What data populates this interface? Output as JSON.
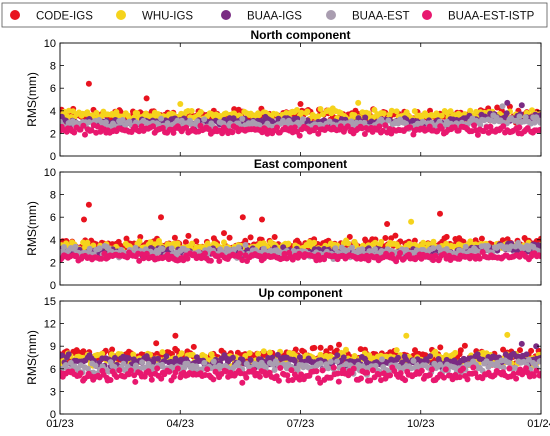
{
  "chart_data": {
    "type": "scatter",
    "legend": {
      "placement": "top",
      "entries": [
        {
          "name": "CODE-IGS",
          "color": "#e8131f"
        },
        {
          "name": "WHU-IGS",
          "color": "#f5d31c"
        },
        {
          "name": "BUAA-IGS",
          "color": "#7a2b83"
        },
        {
          "name": "BUAA-EST",
          "color": "#a99db0"
        },
        {
          "name": "BUAA-EST-ISTP",
          "color": "#e8186f"
        }
      ]
    },
    "x_ticks": [
      "01/23",
      "04/23",
      "07/23",
      "10/23",
      "01/24"
    ],
    "panels": [
      {
        "title": "North component",
        "ylabel": "RMS(mm)",
        "ylim": [
          0,
          10
        ],
        "yticks": [
          "0",
          "2",
          "4",
          "6",
          "8",
          "10"
        ],
        "series": [
          {
            "name": "CODE-IGS",
            "level": 3.6,
            "spread": 0.5,
            "outliers": [
              [
                0.06,
                6.4
              ],
              [
                0.18,
                5.1
              ],
              [
                0.5,
                4.6
              ]
            ]
          },
          {
            "name": "WHU-IGS",
            "level": 3.6,
            "spread": 0.45,
            "outliers": [
              [
                0.25,
                4.6
              ],
              [
                0.62,
                4.7
              ]
            ]
          },
          {
            "name": "BUAA-IGS",
            "level": 3.0,
            "spread": 0.35,
            "outliers": [
              [
                0.93,
                4.7
              ],
              [
                0.96,
                4.5
              ]
            ]
          },
          {
            "name": "BUAA-EST",
            "level": 2.8,
            "spread": 0.35,
            "outliers": [
              [
                0.92,
                4.4
              ]
            ]
          },
          {
            "name": "BUAA-EST-ISTP",
            "level": 2.3,
            "spread": 0.3,
            "outliers": []
          }
        ]
      },
      {
        "title": "East component",
        "ylabel": "RMS(mm)",
        "ylim": [
          0,
          10
        ],
        "yticks": [
          "0",
          "2",
          "4",
          "6",
          "8",
          "10"
        ],
        "series": [
          {
            "name": "CODE-IGS",
            "level": 3.6,
            "spread": 0.6,
            "outliers": [
              [
                0.06,
                7.1
              ],
              [
                0.05,
                5.8
              ],
              [
                0.21,
                6.0
              ],
              [
                0.38,
                6.0
              ],
              [
                0.42,
                5.8
              ],
              [
                0.79,
                6.3
              ],
              [
                0.68,
                5.4
              ]
            ]
          },
          {
            "name": "WHU-IGS",
            "level": 3.4,
            "spread": 0.4,
            "outliers": [
              [
                0.73,
                5.6
              ]
            ]
          },
          {
            "name": "BUAA-IGS",
            "level": 2.9,
            "spread": 0.35,
            "outliers": []
          },
          {
            "name": "BUAA-EST",
            "level": 2.9,
            "spread": 0.4,
            "outliers": []
          },
          {
            "name": "BUAA-EST-ISTP",
            "level": 2.5,
            "spread": 0.3,
            "outliers": []
          }
        ]
      },
      {
        "title": "Up component",
        "ylabel": "RMS(mm)",
        "ylim": [
          0,
          15
        ],
        "yticks": [
          "0",
          "3",
          "6",
          "9",
          "12",
          "15"
        ],
        "series": [
          {
            "name": "CODE-IGS",
            "level": 7.7,
            "spread": 0.9,
            "outliers": [
              [
                0.24,
                10.4
              ],
              [
                0.2,
                9.4
              ],
              [
                0.58,
                9.2
              ]
            ]
          },
          {
            "name": "WHU-IGS",
            "level": 7.4,
            "spread": 0.9,
            "outliers": [
              [
                0.72,
                10.4
              ],
              [
                0.93,
                10.5
              ]
            ]
          },
          {
            "name": "BUAA-IGS",
            "level": 6.9,
            "spread": 0.7,
            "outliers": [
              [
                0.96,
                9.3
              ],
              [
                0.99,
                9.0
              ]
            ]
          },
          {
            "name": "BUAA-EST",
            "level": 6.2,
            "spread": 0.7,
            "outliers": []
          },
          {
            "name": "BUAA-EST-ISTP",
            "level": 5.2,
            "spread": 0.8,
            "outliers": []
          }
        ]
      }
    ]
  }
}
